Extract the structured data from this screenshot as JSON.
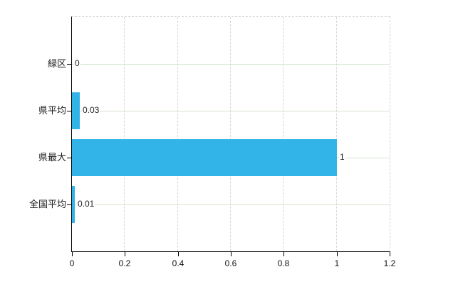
{
  "chart_data": {
    "type": "bar",
    "orientation": "horizontal",
    "title": "",
    "categories": [
      "緑区",
      "県平均",
      "県最大",
      "全国平均"
    ],
    "values": [
      0,
      0.03,
      1,
      0.01
    ],
    "value_labels": [
      "0",
      "0.03",
      "1",
      "0.01"
    ],
    "xlim": [
      0,
      1.2
    ],
    "xticks": [
      0,
      0.2,
      0.4,
      0.6,
      0.8,
      1,
      1.2
    ],
    "xtick_labels": [
      "0",
      "0.2",
      "0.4",
      "0.6",
      "0.8",
      "1",
      "1.2"
    ],
    "grid": "on",
    "legend": "none",
    "bar_color": "#33b4e9",
    "axis_color": "#000000",
    "vertical_grid_color": "#d6d6d6",
    "horizontal_grid_color": "#d6e4d2",
    "border_dash_color": "#d2d2d2",
    "background_color": "#ffffff"
  }
}
